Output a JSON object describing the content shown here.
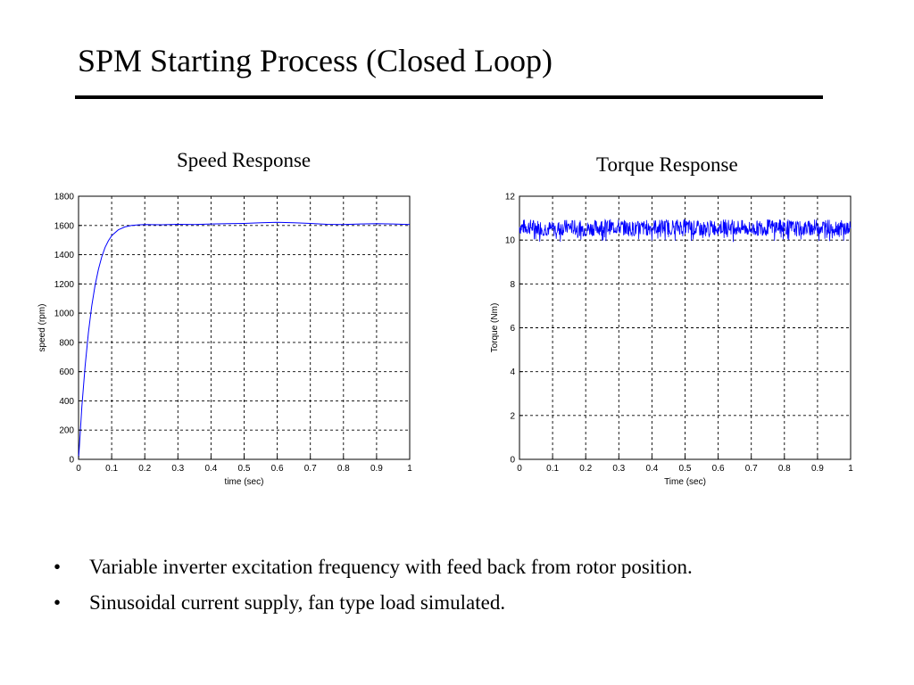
{
  "slide": {
    "title": "SPM Starting Process (Closed Loop)",
    "bullet_symbol": "•",
    "bullets": [
      "Variable inverter excitation frequency with feed back from rotor position.",
      "Sinusoidal current supply, fan type load simulated."
    ]
  },
  "colors": {
    "series": "#0000ff",
    "grid": "#000000",
    "frame": "#000000"
  },
  "chart_data": [
    {
      "type": "line",
      "title": "Speed Response",
      "xlabel": "time (sec)",
      "ylabel": "speed (rpm)",
      "xlim": [
        0,
        1
      ],
      "ylim": [
        0,
        1800
      ],
      "xticks": [
        0,
        0.1,
        0.2,
        0.3,
        0.4,
        0.5,
        0.6,
        0.7,
        0.8,
        0.9,
        1
      ],
      "xtick_labels": [
        "0",
        "0.1",
        "0.2",
        "0.3",
        "0.4",
        "0.5",
        "0.6",
        "0.7",
        "0.8",
        "0.9",
        "1"
      ],
      "yticks": [
        0,
        200,
        400,
        600,
        800,
        1000,
        1200,
        1400,
        1600,
        1800
      ],
      "ytick_labels": [
        "0",
        "200",
        "400",
        "600",
        "800",
        "1000",
        "1200",
        "1400",
        "1600",
        "1800"
      ],
      "grid": true,
      "series": [
        {
          "x": [
            0,
            0.005,
            0.01,
            0.02,
            0.03,
            0.04,
            0.05,
            0.06,
            0.07,
            0.08,
            0.09,
            0.1,
            0.12,
            0.14,
            0.16,
            0.18,
            0.2,
            0.25,
            0.3,
            0.35,
            0.4,
            0.45,
            0.5,
            0.55,
            0.6,
            0.65,
            0.7,
            0.75,
            0.8,
            0.85,
            0.9,
            0.95,
            1.0
          ],
          "y": [
            0,
            180,
            360,
            640,
            870,
            1050,
            1190,
            1300,
            1385,
            1450,
            1495,
            1530,
            1570,
            1590,
            1600,
            1604,
            1606,
            1605,
            1608,
            1606,
            1610,
            1612,
            1614,
            1618,
            1622,
            1618,
            1614,
            1608,
            1606,
            1610,
            1612,
            1610,
            1606
          ]
        }
      ]
    },
    {
      "type": "line",
      "title": "Torque Response",
      "xlabel": "Time (sec)",
      "ylabel": "Torque (Nm)",
      "xlim": [
        0,
        1
      ],
      "ylim": [
        0,
        12
      ],
      "xticks": [
        0,
        0.1,
        0.2,
        0.3,
        0.4,
        0.5,
        0.6,
        0.7,
        0.8,
        0.9,
        1
      ],
      "xtick_labels": [
        "0",
        "0.1",
        "0.2",
        "0.3",
        "0.4",
        "0.5",
        "0.6",
        "0.7",
        "0.8",
        "0.9",
        "1"
      ],
      "yticks": [
        0,
        2,
        4,
        6,
        8,
        10,
        12
      ],
      "ytick_labels": [
        "0",
        "2",
        "4",
        "6",
        "8",
        "10",
        "12"
      ],
      "grid": true,
      "series": [
        {
          "x": [
            0,
            0.05,
            0.1,
            0.15,
            0.2,
            0.25,
            0.3,
            0.35,
            0.4,
            0.45,
            0.5,
            0.55,
            0.6,
            0.65,
            0.7,
            0.75,
            0.8,
            0.85,
            0.9,
            0.95,
            1.0
          ],
          "y": [
            10.6,
            10.6,
            10.5,
            10.6,
            10.5,
            10.6,
            10.6,
            10.5,
            10.6,
            10.6,
            10.6,
            10.5,
            10.6,
            10.6,
            10.5,
            10.6,
            10.6,
            10.5,
            10.6,
            10.6,
            10.5
          ],
          "ripple_band": [
            9.9,
            11.1
          ]
        }
      ]
    }
  ]
}
